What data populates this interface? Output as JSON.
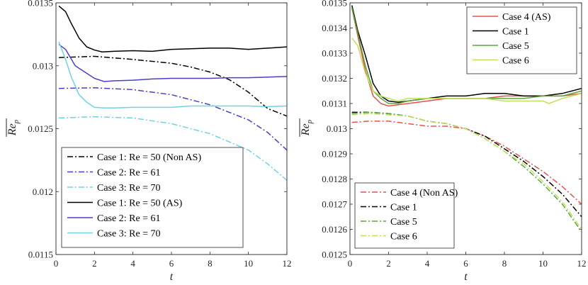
{
  "chart_data": [
    {
      "type": "line",
      "xlabel": "t",
      "ylabel": "Re_p (mean)",
      "xlim": [
        0,
        12
      ],
      "ylim": [
        0.0115,
        0.0135
      ],
      "xticks": [
        "0",
        "2",
        "4",
        "6",
        "8",
        "10",
        "12"
      ],
      "yticks": [
        "0.0115",
        "0.012",
        "0.0125",
        "0.013",
        "0.0135"
      ],
      "legend_position": "bottom-left",
      "series": [
        {
          "name": "Case 1: Re = 50 (Non AS)",
          "color": "#000000",
          "style": "dashdot",
          "x": [
            0.15,
            2,
            4,
            6,
            7,
            8,
            9,
            10,
            11,
            12
          ],
          "y": [
            0.013065,
            0.013075,
            0.01305,
            0.01302,
            0.01299,
            0.01295,
            0.01289,
            0.01279,
            0.01266,
            0.0126
          ]
        },
        {
          "name": "Case 2: Re = 61",
          "color": "#4a3fc9",
          "style": "dashdot",
          "x": [
            0.15,
            2,
            4,
            6,
            8,
            10,
            11,
            12
          ],
          "y": [
            0.01282,
            0.012825,
            0.01281,
            0.01277,
            0.01269,
            0.01257,
            0.01247,
            0.01233
          ]
        },
        {
          "name": "Case 3: Re = 70",
          "color": "#6fd3e3",
          "style": "dashdot",
          "x": [
            0.15,
            2,
            4,
            6,
            8,
            10,
            11,
            12
          ],
          "y": [
            0.012585,
            0.012595,
            0.012585,
            0.01254,
            0.01246,
            0.01233,
            0.01222,
            0.01209
          ]
        },
        {
          "name": "Case 1: Re = 50 (AS)",
          "color": "#000000",
          "style": "solid",
          "x": [
            0.15,
            0.5,
            0.8,
            1.2,
            1.6,
            2.0,
            2.4,
            3,
            4,
            5,
            6,
            7,
            8,
            9,
            10,
            11,
            12
          ],
          "y": [
            0.013475,
            0.01343,
            0.013335,
            0.01322,
            0.01315,
            0.013125,
            0.01311,
            0.013115,
            0.01312,
            0.013115,
            0.01313,
            0.013135,
            0.01314,
            0.01314,
            0.01313,
            0.01314,
            0.01315
          ]
        },
        {
          "name": "Case 2: Re = 61",
          "color": "#4a3fc9",
          "style": "solid",
          "x": [
            0.15,
            0.5,
            1.0,
            1.5,
            2.0,
            2.5,
            3,
            4,
            5,
            6,
            7,
            8,
            9,
            10,
            11,
            12
          ],
          "y": [
            0.01317,
            0.01313,
            0.013,
            0.01295,
            0.0129,
            0.012875,
            0.01288,
            0.012885,
            0.012895,
            0.0129,
            0.0129,
            0.0129,
            0.012905,
            0.012905,
            0.01291,
            0.012915
          ]
        },
        {
          "name": "Case 3: Re = 70",
          "color": "#6fd3e3",
          "style": "solid",
          "x": [
            0.15,
            0.5,
            0.8,
            1.2,
            1.6,
            2.0,
            2.5,
            3,
            4,
            5,
            6,
            7,
            8,
            9,
            10,
            11,
            12
          ],
          "y": [
            0.01319,
            0.01305,
            0.01291,
            0.01277,
            0.01271,
            0.01267,
            0.012665,
            0.012665,
            0.01267,
            0.01267,
            0.01267,
            0.01268,
            0.01268,
            0.01268,
            0.01268,
            0.012675,
            0.01268
          ]
        }
      ]
    },
    {
      "type": "line",
      "xlabel": "t",
      "ylabel": "Re_p (mean)",
      "xlim": [
        0,
        12
      ],
      "ylim": [
        0.0125,
        0.0135
      ],
      "xticks": [
        "0",
        "2",
        "4",
        "6",
        "8",
        "10",
        "12"
      ],
      "yticks": [
        "0.0125",
        "0.0126",
        "0.0127",
        "0.0128",
        "0.0129",
        "0.013",
        "0.0131",
        "0.0132",
        "0.0133",
        "0.0134",
        "0.0135"
      ],
      "legend_position": "top-right and bottom-left",
      "series": [
        {
          "name": "Case 4 (AS)",
          "color": "#e8504a",
          "style": "solid",
          "x": [
            0.1,
            0.4,
            0.8,
            1.2,
            1.6,
            2,
            2.5,
            3,
            4,
            5,
            6,
            7,
            8,
            9,
            10,
            11,
            12
          ],
          "y": [
            0.01348,
            0.01337,
            0.01323,
            0.01313,
            0.0131,
            0.01309,
            0.013095,
            0.0131,
            0.01311,
            0.01312,
            0.01312,
            0.01312,
            0.01313,
            0.01313,
            0.01313,
            0.01313,
            0.01314
          ]
        },
        {
          "name": "Case 1",
          "color": "#000000",
          "style": "solid",
          "x": [
            0.1,
            0.4,
            0.8,
            1.2,
            1.6,
            2,
            2.5,
            3,
            4,
            5,
            6,
            7,
            8,
            9,
            10,
            11,
            12
          ],
          "y": [
            0.01349,
            0.01339,
            0.01329,
            0.01318,
            0.01313,
            0.01311,
            0.013105,
            0.01311,
            0.01312,
            0.01313,
            0.01313,
            0.01314,
            0.01314,
            0.01313,
            0.01313,
            0.01314,
            0.01316
          ]
        },
        {
          "name": "Case 5",
          "color": "#5aa83a",
          "style": "solid",
          "x": [
            0.1,
            0.4,
            0.8,
            1.2,
            1.6,
            2,
            2.5,
            3,
            4,
            5,
            6,
            7,
            8,
            9,
            10,
            11,
            12
          ],
          "y": [
            0.01348,
            0.01338,
            0.01325,
            0.01315,
            0.01312,
            0.0131,
            0.0131,
            0.01311,
            0.01312,
            0.01312,
            0.01312,
            0.01312,
            0.01312,
            0.01312,
            0.01313,
            0.01313,
            0.01315
          ]
        },
        {
          "name": "Case 6",
          "color": "#bfe05c",
          "style": "solid",
          "x": [
            0.1,
            0.4,
            0.8,
            1.2,
            1.6,
            2,
            2.5,
            3,
            4,
            5,
            6,
            7,
            8,
            9,
            10,
            10.3,
            11,
            12
          ],
          "y": [
            0.01336,
            0.01333,
            0.01322,
            0.01315,
            0.01313,
            0.01312,
            0.01311,
            0.01312,
            0.01312,
            0.01312,
            0.01312,
            0.01312,
            0.01311,
            0.01311,
            0.01311,
            0.0131,
            0.01312,
            0.01314
          ]
        },
        {
          "name": "Case 4 (Non AS)",
          "color": "#e8504a",
          "style": "dashdot",
          "x": [
            0.1,
            1,
            2,
            3,
            4,
            5,
            6,
            7,
            8,
            9,
            10,
            11,
            12
          ],
          "y": [
            0.013025,
            0.01303,
            0.01303,
            0.01302,
            0.01301,
            0.01301,
            0.013,
            0.01297,
            0.01293,
            0.01288,
            0.01283,
            0.01277,
            0.0127
          ]
        },
        {
          "name": "Case 1",
          "color": "#000000",
          "style": "dashdot",
          "x": [
            0.1,
            1,
            2,
            3,
            4,
            5,
            6,
            7,
            8,
            9,
            10,
            11,
            12
          ],
          "y": [
            0.013065,
            0.013065,
            0.01306,
            0.01305,
            0.01303,
            0.01302,
            0.013,
            0.01297,
            0.01292,
            0.01287,
            0.01281,
            0.01274,
            0.01265
          ]
        },
        {
          "name": "Case 5",
          "color": "#5aa83a",
          "style": "dashdot",
          "x": [
            0.1,
            1,
            2,
            3,
            4,
            5,
            6,
            7,
            8,
            9,
            10,
            11,
            12
          ],
          "y": [
            0.01306,
            0.013065,
            0.01306,
            0.01305,
            0.01303,
            0.01302,
            0.013,
            0.01296,
            0.01291,
            0.01285,
            0.01278,
            0.0127,
            0.01259
          ]
        },
        {
          "name": "Case 6",
          "color": "#bfe05c",
          "style": "dashdot",
          "x": [
            0.1,
            1,
            2,
            3,
            4,
            5,
            6,
            7,
            8,
            9,
            10,
            11,
            12
          ],
          "y": [
            0.013055,
            0.01306,
            0.013055,
            0.01305,
            0.01303,
            0.01302,
            0.013,
            0.01296,
            0.01291,
            0.01286,
            0.01279,
            0.01271,
            0.0126
          ]
        }
      ]
    }
  ]
}
